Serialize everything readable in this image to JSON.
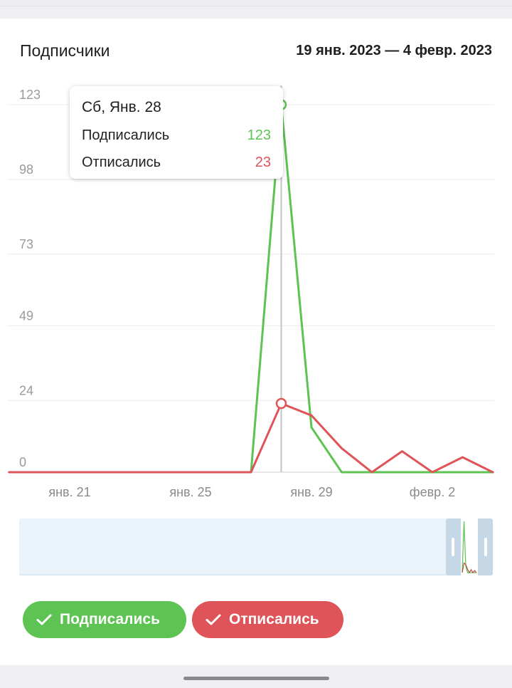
{
  "header": {
    "title": "Подписчики",
    "date_range": "19 янв. 2023 — 4 февр. 2023"
  },
  "tooltip": {
    "date": "Сб, Янв. 28",
    "rows": [
      {
        "label": "Подписались",
        "value": "123",
        "color": "#5dc352"
      },
      {
        "label": "Отписались",
        "value": "23",
        "color": "#de5458"
      }
    ]
  },
  "chart_data": {
    "type": "line",
    "x": [
      "2023-01-19",
      "2023-01-20",
      "2023-01-21",
      "2023-01-22",
      "2023-01-23",
      "2023-01-24",
      "2023-01-25",
      "2023-01-26",
      "2023-01-27",
      "2023-01-28",
      "2023-01-29",
      "2023-01-30",
      "2023-01-31",
      "2023-02-01",
      "2023-02-02",
      "2023-02-03",
      "2023-02-04"
    ],
    "x_tick_labels": [
      {
        "x": "2023-01-21",
        "label": "янв. 21"
      },
      {
        "x": "2023-01-25",
        "label": "янв. 25"
      },
      {
        "x": "2023-01-29",
        "label": "янв. 29"
      },
      {
        "x": "2023-02-02",
        "label": "февр. 2"
      }
    ],
    "y_ticks": [
      0,
      24,
      49,
      73,
      98,
      123
    ],
    "ylim": [
      0,
      123
    ],
    "grid": true,
    "highlight_x": "2023-01-28",
    "series": [
      {
        "name": "Подписались",
        "color": "#5dc352",
        "values": [
          0,
          0,
          0,
          0,
          0,
          0,
          0,
          0,
          0,
          123,
          15,
          0,
          0,
          0,
          0,
          0,
          0
        ]
      },
      {
        "name": "Отписались",
        "color": "#de5458",
        "values": [
          0,
          0,
          0,
          0,
          0,
          0,
          0,
          0,
          0,
          23,
          19,
          8,
          0,
          7,
          0,
          5,
          0
        ]
      }
    ]
  },
  "legend": {
    "items": [
      {
        "label": "Подписались",
        "color": "#5dc352"
      },
      {
        "label": "Отписались",
        "color": "#de5458"
      }
    ]
  }
}
